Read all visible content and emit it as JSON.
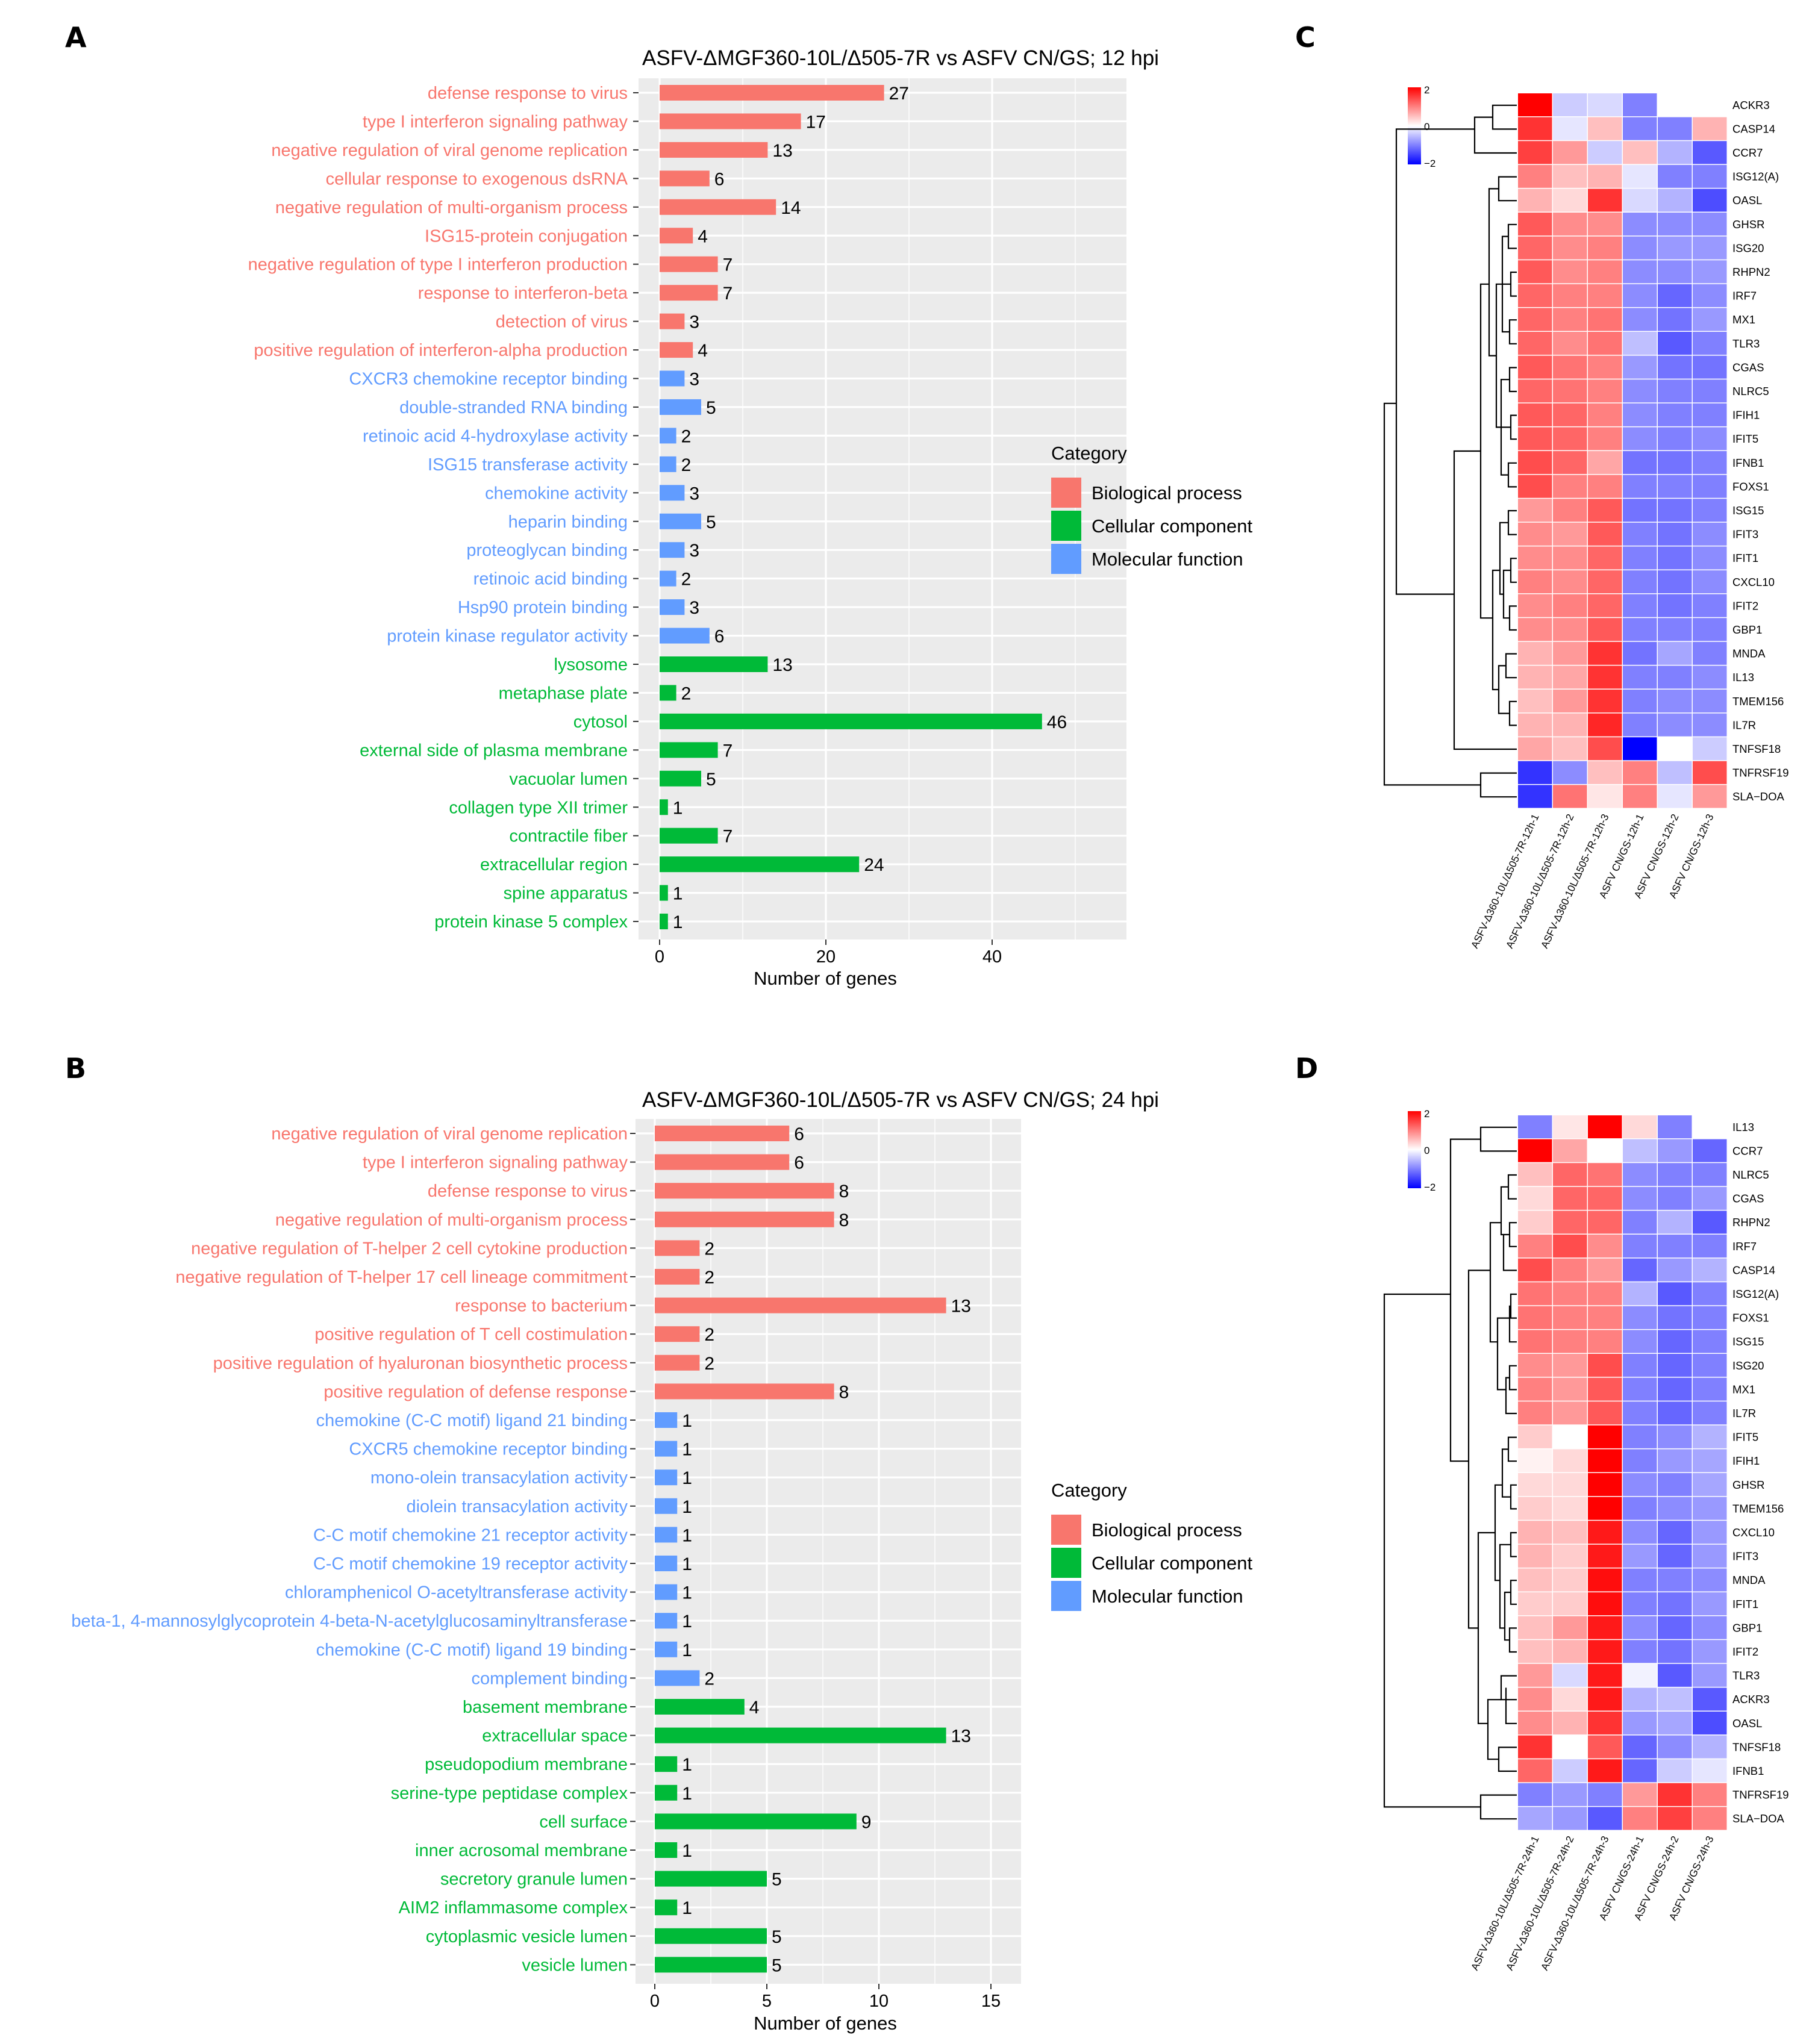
{
  "colors": {
    "biological_process": "#F8766D",
    "cellular_component": "#00BA38",
    "molecular_function": "#619CFF",
    "panel_bg": "#EBEBEB",
    "heat_low": "#0000FF",
    "heat_mid": "#FFFFFF",
    "heat_high": "#FF0000"
  },
  "panels": {
    "A": {
      "letter": "A"
    },
    "B": {
      "letter": "B"
    },
    "C": {
      "letter": "C"
    },
    "D": {
      "letter": "D"
    }
  },
  "legend": {
    "title": "Category",
    "items": [
      "Biological process",
      "Cellular component",
      "Molecular function"
    ]
  },
  "chart_data": [
    {
      "id": "A",
      "type": "bar",
      "orientation": "horizontal",
      "title": "ASFV-ΔMGF360-10L/Δ505-7R vs ASFV CN/GS; 12 hpi",
      "xlabel": "Number of genes",
      "xlim": [
        0,
        55
      ],
      "xticks": [
        0,
        20,
        40
      ],
      "grid": true,
      "legend_position": "right",
      "categories": [
        "defense response to virus",
        "type I interferon signaling pathway",
        "negative regulation of viral genome replication",
        "cellular response to exogenous dsRNA",
        "negative regulation of multi-organism process",
        "ISG15-protein conjugation",
        "negative regulation of type I interferon production",
        "response to interferon-beta",
        "detection of virus",
        "positive regulation of interferon-alpha production",
        "CXCR3 chemokine receptor binding",
        "double-stranded RNA binding",
        "retinoic acid 4-hydroxylase activity",
        "ISG15 transferase activity",
        "chemokine activity",
        "heparin binding",
        "proteoglycan binding",
        "retinoic acid binding",
        "Hsp90 protein binding",
        "protein kinase regulator activity",
        "lysosome",
        "metaphase plate",
        "cytosol",
        "external side of plasma membrane",
        "vacuolar lumen",
        "collagen type XII trimer",
        "contractile fiber",
        "extracellular region",
        "spine apparatus",
        "protein kinase 5 complex"
      ],
      "values": [
        27,
        17,
        13,
        6,
        14,
        4,
        7,
        7,
        3,
        4,
        3,
        5,
        2,
        2,
        3,
        5,
        3,
        2,
        3,
        6,
        13,
        2,
        46,
        7,
        5,
        1,
        7,
        24,
        1,
        1
      ],
      "groups": [
        "BP",
        "BP",
        "BP",
        "BP",
        "BP",
        "BP",
        "BP",
        "BP",
        "BP",
        "BP",
        "MF",
        "MF",
        "MF",
        "MF",
        "MF",
        "MF",
        "MF",
        "MF",
        "MF",
        "MF",
        "CC",
        "CC",
        "CC",
        "CC",
        "CC",
        "CC",
        "CC",
        "CC",
        "CC",
        "CC"
      ]
    },
    {
      "id": "B",
      "type": "bar",
      "orientation": "horizontal",
      "title": "ASFV-ΔMGF360-10L/Δ505-7R vs ASFV CN/GS; 24 hpi",
      "xlabel": "Number of genes",
      "xlim": [
        0,
        16.5
      ],
      "xticks": [
        0,
        5,
        10,
        15
      ],
      "grid": true,
      "legend_position": "right",
      "categories": [
        "negative regulation of viral genome replication",
        "type I interferon signaling pathway",
        "defense response to virus",
        "negative regulation of multi-organism process",
        "negative regulation of T-helper 2 cell cytokine production",
        "negative regulation of T-helper 17 cell lineage commitment",
        "response to bacterium",
        "positive regulation of T cell costimulation",
        "positive regulation of hyaluronan biosynthetic process",
        "positive regulation of defense response",
        "chemokine (C-C motif) ligand 21 binding",
        "CXCR5 chemokine receptor binding",
        "mono-olein transacylation activity",
        "diolein transacylation activity",
        "C-C motif chemokine 21 receptor activity",
        "C-C motif chemokine 19 receptor activity",
        "chloramphenicol O-acetyltransferase activity",
        "beta-1, 4-mannosylglycoprotein 4-beta-N-acetylglucosaminyltransferase",
        "chemokine (C-C motif) ligand 19 binding",
        "complement binding",
        "basement membrane",
        "extracellular space",
        "pseudopodium membrane",
        "serine-type peptidase complex",
        "cell surface",
        "inner acrosomal membrane",
        "secretory granule lumen",
        "AIM2 inflammasome complex",
        "cytoplasmic vesicle lumen",
        "vesicle lumen"
      ],
      "values": [
        6,
        6,
        8,
        8,
        2,
        2,
        13,
        2,
        2,
        8,
        1,
        1,
        1,
        1,
        1,
        1,
        1,
        1,
        1,
        2,
        4,
        13,
        1,
        1,
        9,
        1,
        5,
        1,
        5,
        5
      ],
      "groups": [
        "BP",
        "BP",
        "BP",
        "BP",
        "BP",
        "BP",
        "BP",
        "BP",
        "BP",
        "BP",
        "MF",
        "MF",
        "MF",
        "MF",
        "MF",
        "MF",
        "MF",
        "MF",
        "MF",
        "MF",
        "CC",
        "CC",
        "CC",
        "CC",
        "CC",
        "CC",
        "CC",
        "CC",
        "CC",
        "CC"
      ]
    },
    {
      "id": "C",
      "type": "heatmap",
      "scale_ticks": [
        "2",
        "0",
        "−2"
      ],
      "vlim": [
        -2,
        2
      ],
      "rows": [
        "ACKR3",
        "CASP14",
        "CCR7",
        "ISG12(A)",
        "OASL",
        "GHSR",
        "ISG20",
        "RHPN2",
        "IRF7",
        "MX1",
        "TLR3",
        "CGAS",
        "NLRC5",
        "IFIH1",
        "IFIT5",
        "IFNB1",
        "FOXS1",
        "ISG15",
        "IFIT3",
        "IFIT1",
        "CXCL10",
        "IFIT2",
        "GBP1",
        "MNDA",
        "IL13",
        "TMEM156",
        "IL7R",
        "TNFSF18",
        "TNFRSF19",
        "SLA−DOA"
      ],
      "columns": [
        "ASFV-Δ360-10L/Δ505-7R-12h-1",
        "ASFV-Δ360-10L/Δ505-7R-12h-2",
        "ASFV-Δ360-10L/Δ505-7R-12h-3",
        "ASFV CN/GS-12h-1",
        "ASFV CN/GS-12h-2",
        "ASFV CN/GS-12h-3"
      ],
      "values": [
        [
          2.0,
          -0.4,
          -0.3,
          -1.0,
          0.0,
          0.0
        ],
        [
          1.6,
          -0.2,
          0.5,
          -1.0,
          -1.0,
          0.6
        ],
        [
          1.5,
          0.8,
          -0.4,
          0.5,
          -0.6,
          -1.3
        ],
        [
          1.0,
          0.5,
          0.6,
          -0.2,
          -1.0,
          -1.0
        ],
        [
          0.6,
          0.3,
          1.6,
          -0.3,
          -0.6,
          -1.4
        ],
        [
          1.3,
          0.9,
          0.9,
          -0.9,
          -0.9,
          -0.9
        ],
        [
          1.2,
          0.9,
          1.0,
          -0.9,
          -0.8,
          -0.8
        ],
        [
          1.3,
          0.9,
          1.0,
          -0.9,
          -0.9,
          -0.8
        ],
        [
          1.2,
          1.0,
          1.0,
          -0.9,
          -1.2,
          -0.9
        ],
        [
          1.2,
          1.0,
          1.1,
          -0.9,
          -1.1,
          -0.8
        ],
        [
          1.2,
          0.9,
          1.1,
          -0.5,
          -1.3,
          -1.0
        ],
        [
          1.3,
          1.1,
          1.0,
          -0.8,
          -1.1,
          -1.1
        ],
        [
          1.2,
          1.1,
          1.0,
          -0.9,
          -1.0,
          -1.0
        ],
        [
          1.3,
          1.2,
          1.0,
          -0.9,
          -1.0,
          -1.0
        ],
        [
          1.3,
          1.2,
          1.0,
          -0.9,
          -1.0,
          -0.9
        ],
        [
          1.4,
          1.2,
          0.7,
          -1.1,
          -1.1,
          -1.0
        ],
        [
          1.4,
          1.0,
          1.0,
          -1.0,
          -1.0,
          -1.0
        ],
        [
          0.8,
          1.0,
          1.3,
          -1.1,
          -1.1,
          -1.0
        ],
        [
          0.9,
          0.8,
          1.3,
          -1.0,
          -1.1,
          -0.9
        ],
        [
          0.9,
          0.9,
          1.2,
          -1.0,
          -1.1,
          -0.9
        ],
        [
          1.0,
          0.9,
          1.2,
          -1.0,
          -1.1,
          -0.9
        ],
        [
          0.9,
          1.0,
          1.2,
          -1.0,
          -1.1,
          -1.0
        ],
        [
          0.9,
          0.9,
          1.3,
          -1.0,
          -1.0,
          -1.0
        ],
        [
          0.6,
          0.8,
          1.6,
          -1.1,
          -0.7,
          -1.0
        ],
        [
          0.6,
          0.7,
          1.6,
          -1.0,
          -1.0,
          -0.9
        ],
        [
          0.5,
          0.8,
          1.6,
          -1.0,
          -0.9,
          -0.9
        ],
        [
          0.6,
          0.6,
          1.7,
          -1.0,
          -0.9,
          -0.9
        ],
        [
          0.7,
          0.5,
          1.4,
          -2.0,
          0.0,
          -0.4
        ],
        [
          -1.6,
          -0.9,
          0.5,
          1.0,
          -0.5,
          1.4
        ],
        [
          -1.6,
          1.1,
          0.2,
          1.0,
          -0.2,
          0.8
        ]
      ]
    },
    {
      "id": "D",
      "type": "heatmap",
      "scale_ticks": [
        "2",
        "0",
        "−2"
      ],
      "vlim": [
        -2,
        2
      ],
      "rows": [
        "IL13",
        "CCR7",
        "NLRC5",
        "CGAS",
        "RHPN2",
        "IRF7",
        "CASP14",
        "ISG12(A)",
        "FOXS1",
        "ISG15",
        "ISG20",
        "MX1",
        "IL7R",
        "IFIT5",
        "IFIH1",
        "GHSR",
        "TMEM156",
        "CXCL10",
        "IFIT3",
        "MNDA",
        "IFIT1",
        "GBP1",
        "IFIT2",
        "TLR3",
        "ACKR3",
        "OASL",
        "TNFSF18",
        "IFNB1",
        "TNFRSF19",
        "SLA−DOA"
      ],
      "columns": [
        "ASFV-Δ360-10L/Δ505-7R-24h-1",
        "ASFV-Δ360-10L/Δ505-7R-24h-2",
        "ASFV-Δ360-10L/Δ505-7R-24h-3",
        "ASFV CN/GS-24h-1",
        "ASFV CN/GS-24h-2",
        "ASFV CN/GS-24h-3"
      ],
      "values": [
        [
          -1.0,
          0.2,
          2.0,
          0.3,
          -1.0,
          0.0
        ],
        [
          2.0,
          0.7,
          0.0,
          -0.5,
          -0.8,
          -1.2
        ],
        [
          0.5,
          1.2,
          1.1,
          -0.9,
          -1.0,
          -1.0
        ],
        [
          0.3,
          1.2,
          1.2,
          -0.9,
          -1.0,
          -0.8
        ],
        [
          0.4,
          1.2,
          1.2,
          -1.0,
          -0.6,
          -1.3
        ],
        [
          1.0,
          1.4,
          0.9,
          -1.0,
          -1.0,
          -1.0
        ],
        [
          1.4,
          1.0,
          0.8,
          -1.2,
          -0.8,
          -0.6
        ],
        [
          1.1,
          1.0,
          1.0,
          -0.6,
          -1.3,
          -1.0
        ],
        [
          1.1,
          1.0,
          1.0,
          -0.9,
          -1.1,
          -1.0
        ],
        [
          1.1,
          1.0,
          1.0,
          -0.9,
          -1.2,
          -1.0
        ],
        [
          0.9,
          0.8,
          1.4,
          -1.0,
          -1.2,
          -1.0
        ],
        [
          1.0,
          0.8,
          1.3,
          -1.0,
          -1.2,
          -1.0
        ],
        [
          1.0,
          0.8,
          1.3,
          -1.0,
          -1.2,
          -1.0
        ],
        [
          0.4,
          0.0,
          2.0,
          -1.0,
          -0.9,
          -0.6
        ],
        [
          0.1,
          0.3,
          2.0,
          -1.0,
          -0.8,
          -0.7
        ],
        [
          0.3,
          0.3,
          2.0,
          -0.9,
          -1.0,
          -0.7
        ],
        [
          0.4,
          0.3,
          2.0,
          -1.0,
          -0.9,
          -0.8
        ],
        [
          0.6,
          0.5,
          1.8,
          -0.9,
          -1.2,
          -0.8
        ],
        [
          0.6,
          0.4,
          1.8,
          -0.8,
          -1.2,
          -0.8
        ],
        [
          0.5,
          0.4,
          1.9,
          -1.0,
          -1.0,
          -0.9
        ],
        [
          0.4,
          0.4,
          1.9,
          -1.0,
          -1.1,
          -0.8
        ],
        [
          0.5,
          0.8,
          1.8,
          -0.9,
          -1.2,
          -0.9
        ],
        [
          0.5,
          0.6,
          1.8,
          -1.0,
          -1.1,
          -0.8
        ],
        [
          0.8,
          -0.3,
          1.8,
          -0.1,
          -1.3,
          -0.8
        ],
        [
          0.9,
          0.3,
          1.8,
          -0.6,
          -0.5,
          -1.3
        ],
        [
          0.9,
          0.6,
          1.6,
          -0.8,
          -0.7,
          -1.4
        ],
        [
          1.6,
          0.0,
          1.3,
          -1.2,
          -0.9,
          -0.6
        ],
        [
          1.2,
          -0.4,
          1.8,
          -1.2,
          -0.4,
          -0.2
        ],
        [
          -1.0,
          -0.8,
          -1.0,
          0.8,
          1.6,
          1.0
        ],
        [
          -0.7,
          -0.8,
          -1.3,
          1.0,
          1.5,
          1.0
        ]
      ]
    }
  ]
}
